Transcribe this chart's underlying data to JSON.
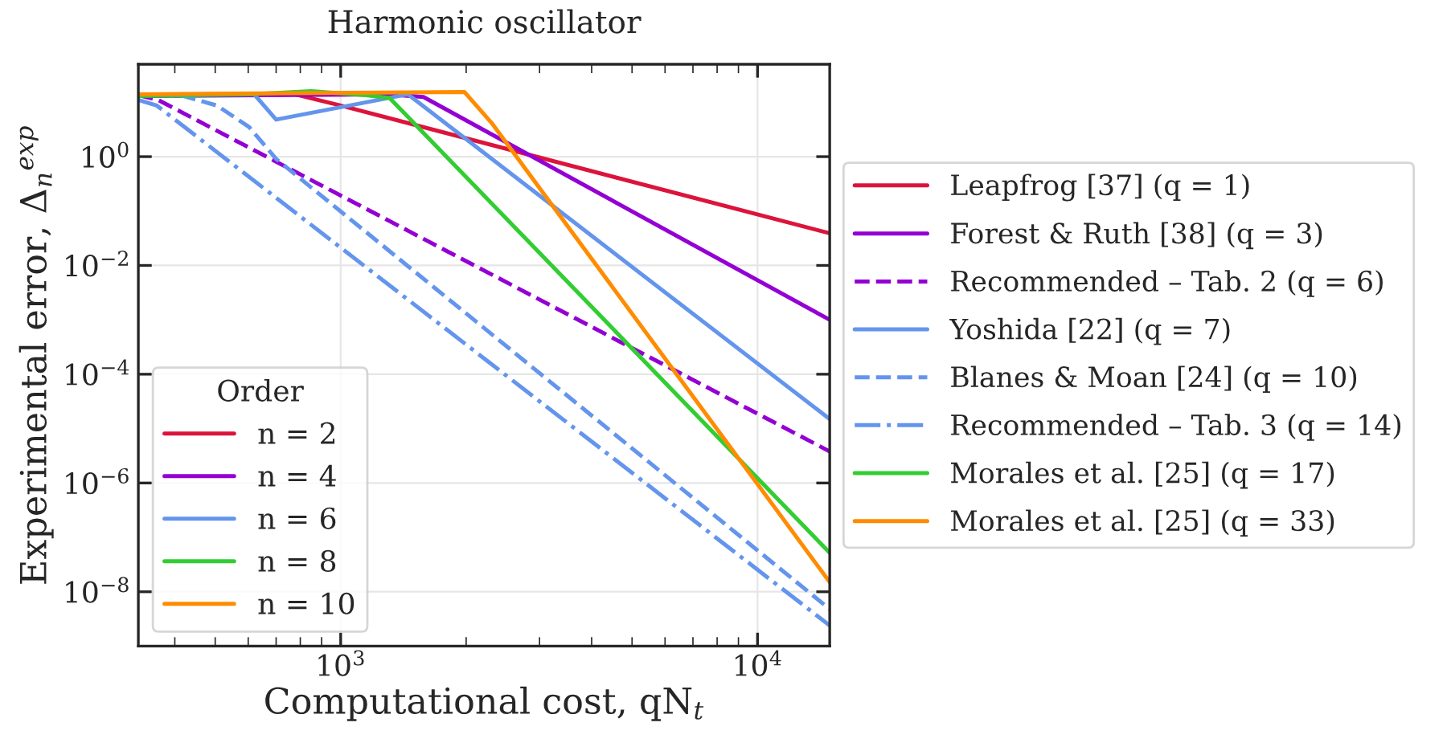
{
  "chart_data": {
    "type": "line",
    "title": "Harmonic oscillator",
    "xlabel": "Computational cost, qN$_{t}$",
    "ylabel": "Experimental error, Δ$_{n}$$^{exp}$",
    "log": "xy",
    "xlim": [
      327,
      14900
    ],
    "ylim": [
      1e-09,
      50
    ],
    "xticks": [
      {
        "value": 1000,
        "label": "10$^{3}$"
      },
      {
        "value": 10000,
        "label": "10$^{4}$"
      }
    ],
    "yticks": [
      {
        "value": 1e-08,
        "label": "10$^{−8}$"
      },
      {
        "value": 1e-06,
        "label": "10$^{−6}$"
      },
      {
        "value": 0.0001,
        "label": "10$^{−4}$"
      },
      {
        "value": 0.01,
        "label": "10$^{−2}$"
      },
      {
        "value": 1,
        "label": "10$^{0}$"
      }
    ],
    "grid": true,
    "legend": "right",
    "legend_title": "Order",
    "series": [
      {
        "name": "Leapfrog [37] (q = 1)",
        "color": "#dc143c",
        "line_style": "solid",
        "x": [
          327,
          776,
          1000,
          14900
        ],
        "values": [
          14,
          14,
          8.7,
          0.039
        ]
      },
      {
        "name": "Forest & Ruth [38] (q = 3)",
        "color": "#9400d3",
        "line_style": "solid",
        "x": [
          327,
          1300,
          1580,
          14900
        ],
        "values": [
          13,
          14,
          12.5,
          0.001
        ]
      },
      {
        "name": "Recommended – Tab. 2 (q = 6)",
        "color": "#9400d3",
        "line_style": "dashed",
        "x": [
          327,
          365,
          14900
        ],
        "values": [
          13.5,
          11,
          3.8e-06
        ]
      },
      {
        "name": "Yoshida [22] (q = 7)",
        "color": "#6495ed",
        "line_style": "solid",
        "x": [
          327,
          620,
          700,
          1450,
          14900
        ],
        "values": [
          14,
          14,
          4.8,
          14,
          1.5e-05
        ]
      },
      {
        "name": "Blanes & Moan [24] (q = 10)",
        "color": "#6495ed",
        "line_style": "dashed",
        "x": [
          327,
          420,
          505,
          603,
          701,
          14900
        ],
        "values": [
          14,
          13,
          8.7,
          3.5,
          0.9,
          4.8e-09
        ]
      },
      {
        "name": "Recommended – Tab. 3 (q = 14)",
        "color": "#6495ed",
        "line_style": "dashdot",
        "x": [
          327,
          362,
          14900
        ],
        "values": [
          11,
          8.7,
          2.4e-09
        ]
      },
      {
        "name": "Morales et al. [25] (q = 17)",
        "color": "#32cd32",
        "line_style": "solid",
        "x": [
          327,
          600,
          850,
          1150,
          1310,
          14900
        ],
        "values": [
          13,
          14,
          16,
          13.5,
          12,
          5.2e-08
        ]
      },
      {
        "name": "Morales et al. [25] (q = 33)",
        "color": "#ff8c00",
        "line_style": "solid",
        "x": [
          327,
          1980,
          2300,
          14900
        ],
        "values": [
          14,
          15.5,
          4.2,
          1.5e-08
        ]
      },
      {
        "name": "n = 2",
        "color": "#dc143c"
      },
      {
        "name": "n = 4",
        "color": "#9400d3"
      },
      {
        "name": "n = 6",
        "color": "#6495ed"
      },
      {
        "name": "n = 8",
        "color": "#32cd32"
      },
      {
        "name": "n = 10",
        "color": "#ff8c00"
      }
    ]
  }
}
